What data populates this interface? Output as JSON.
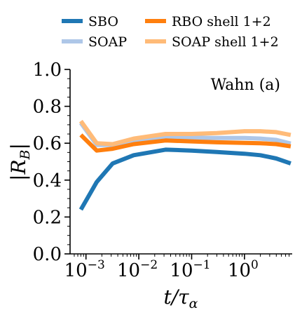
{
  "chart_data": {
    "type": "line",
    "annotation": "Wahn (a)",
    "xlabel": "t/τα",
    "ylabel": "|R_B|",
    "xscale": "log",
    "xlim": [
      0.0005,
      8
    ],
    "ylim": [
      0.0,
      1.0
    ],
    "yticks": [
      {
        "value": 0.0,
        "label": "0.0"
      },
      {
        "value": 0.2,
        "label": "0.2"
      },
      {
        "value": 0.4,
        "label": "0.4"
      },
      {
        "value": 0.6,
        "label": "0.6"
      },
      {
        "value": 0.8,
        "label": "0.8"
      },
      {
        "value": 1.0,
        "label": "1.0"
      }
    ],
    "xticks": [
      {
        "value": 0.001,
        "base": "10",
        "exp": "−3"
      },
      {
        "value": 0.01,
        "base": "10",
        "exp": "−2"
      },
      {
        "value": 0.1,
        "base": "10",
        "exp": "−1"
      },
      {
        "value": 1,
        "base": "10",
        "exp": "0"
      }
    ],
    "legend_position": "top",
    "grid": false,
    "x": [
      0.0008,
      0.0016,
      0.0032,
      0.008,
      0.032,
      0.1,
      0.3,
      1.0,
      2.0,
      4.0,
      7.5
    ],
    "series": [
      {
        "name": "SOAP",
        "color": "#aec7e8",
        "values": [
          0.71,
          0.59,
          0.59,
          0.615,
          0.635,
          0.63,
          0.628,
          0.628,
          0.625,
          0.618,
          0.598
        ]
      },
      {
        "name": "SBO",
        "color": "#1f77b4",
        "values": [
          0.24,
          0.39,
          0.49,
          0.535,
          0.565,
          0.56,
          0.552,
          0.543,
          0.535,
          0.517,
          0.49
        ]
      },
      {
        "name": "SOAP shell 1+2",
        "color": "#ffbb78",
        "values": [
          0.72,
          0.6,
          0.595,
          0.625,
          0.65,
          0.65,
          0.655,
          0.665,
          0.665,
          0.66,
          0.645
        ]
      },
      {
        "name": "RBO shell 1+2",
        "color": "#ff7f0e",
        "values": [
          0.645,
          0.56,
          0.57,
          0.595,
          0.615,
          0.61,
          0.605,
          0.602,
          0.6,
          0.595,
          0.583
        ]
      }
    ],
    "legend": [
      {
        "name": "SBO",
        "color": "#1f77b4"
      },
      {
        "name": "RBO shell 1+2",
        "color": "#ff7f0e"
      },
      {
        "name": "SOAP",
        "color": "#aec7e8"
      },
      {
        "name": "SOAP shell 1+2",
        "color": "#ffbb78"
      }
    ]
  }
}
